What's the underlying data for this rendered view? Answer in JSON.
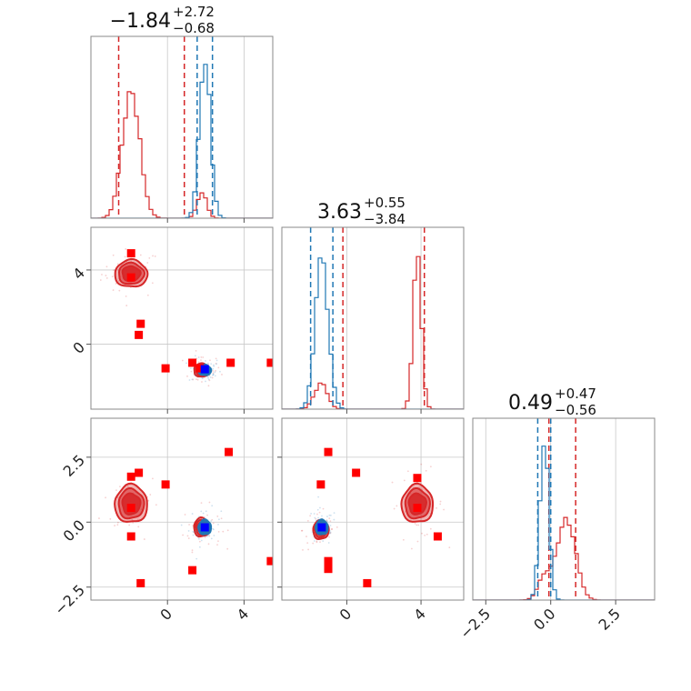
{
  "colors": {
    "red": "#d62728",
    "blue": "#1f77b4",
    "marker_red": "#ff0000",
    "marker_blue": "#0000ff",
    "grid": "#c8c8c8"
  },
  "titles": [
    {
      "main": "−1.84",
      "sup": "+2.72",
      "sub": "−0.68"
    },
    {
      "main": "3.63",
      "sup": "+0.55",
      "sub": "−3.84"
    },
    {
      "main": "0.49",
      "sup": "+0.47",
      "sub": "−0.56"
    }
  ],
  "chart_data": {
    "type": "corner",
    "parameters": 3,
    "ranges": [
      [
        -4.0,
        5.5
      ],
      [
        -3.5,
        6.3
      ],
      [
        -3.0,
        4.0
      ]
    ],
    "ticks": {
      "p0": [
        0,
        4
      ],
      "p1": [
        0,
        4
      ],
      "p2": [
        -2.5,
        0.0,
        2.5
      ],
      "p1_labels": [
        "0",
        "4"
      ],
      "p2_labels": [
        "−2.5",
        "0.0",
        "2.5"
      ],
      "p0_labels": [
        "0",
        "4"
      ]
    },
    "series": [
      {
        "color": "red",
        "hist_peaks": [
          {
            "param": 0,
            "modes": [
              {
                "center": -1.9,
                "sigma": 0.45,
                "height": 0.72
              },
              {
                "center": 1.8,
                "sigma": 0.25,
                "height": 0.14
              }
            ]
          },
          {
            "param": 1,
            "modes": [
              {
                "center": 3.8,
                "sigma": 0.22,
                "height": 0.88
              },
              {
                "center": -1.4,
                "sigma": 0.35,
                "height": 0.14
              }
            ]
          },
          {
            "param": 2,
            "modes": [
              {
                "center": 0.6,
                "sigma": 0.35,
                "height": 0.45
              },
              {
                "center": -0.25,
                "sigma": 0.25,
                "height": 0.12
              }
            ]
          }
        ],
        "quantile_lines": [
          [
            -2.55,
            0.88
          ],
          [
            -0.21,
            4.18
          ],
          [
            -0.07,
            0.96
          ]
        ],
        "clusters": [
          {
            "pair": "1-0",
            "centers": [
              [
                -1.9,
                3.8
              ],
              [
                1.8,
                -1.4
              ]
            ]
          },
          {
            "pair": "2-0",
            "centers": [
              [
                -1.9,
                0.7
              ],
              [
                1.8,
                -0.2
              ]
            ]
          },
          {
            "pair": "2-1",
            "centers": [
              [
                3.8,
                0.7
              ],
              [
                -1.4,
                -0.3
              ]
            ]
          }
        ],
        "markers": {
          "1-0": [
            [
              -1.9,
              4.9
            ],
            [
              -1.9,
              3.6
            ],
            [
              -1.4,
              1.1
            ],
            [
              -1.5,
              0.5
            ],
            [
              -0.1,
              -1.3
            ],
            [
              1.3,
              -1.0
            ],
            [
              1.7,
              -1.3
            ],
            [
              3.3,
              -1.0
            ],
            [
              5.4,
              -1.0
            ]
          ],
          "2-0": [
            [
              -1.9,
              1.75
            ],
            [
              -1.5,
              1.9
            ],
            [
              -0.1,
              1.45
            ],
            [
              3.2,
              2.7
            ],
            [
              -1.9,
              0.55
            ],
            [
              -1.9,
              -0.55
            ],
            [
              1.3,
              -1.85
            ],
            [
              -1.4,
              -2.35
            ],
            [
              5.4,
              -1.5
            ]
          ],
          "2-1": [
            [
              -1.0,
              2.7
            ],
            [
              -1.4,
              1.45
            ],
            [
              0.5,
              1.9
            ],
            [
              3.8,
              1.7
            ],
            [
              3.8,
              0.55
            ],
            [
              4.9,
              -0.55
            ],
            [
              -1.0,
              -1.5
            ],
            [
              -1.0,
              -1.8
            ],
            [
              1.1,
              -2.35
            ]
          ]
        }
      },
      {
        "color": "blue",
        "hist_peaks": [
          {
            "param": 0,
            "modes": [
              {
                "center": 1.95,
                "sigma": 0.28,
                "height": 0.9
              }
            ]
          },
          {
            "param": 1,
            "modes": [
              {
                "center": -1.35,
                "sigma": 0.35,
                "height": 0.85
              }
            ]
          },
          {
            "param": 2,
            "modes": [
              {
                "center": -0.25,
                "sigma": 0.17,
                "height": 0.9
              }
            ]
          }
        ],
        "quantile_lines": [
          [
            1.55,
            2.35
          ],
          [
            -1.95,
            -0.75
          ],
          [
            -0.5,
            0.0
          ]
        ],
        "clusters": [
          {
            "pair": "1-0",
            "centers": [
              [
                1.95,
                -1.4
              ]
            ]
          },
          {
            "pair": "2-0",
            "centers": [
              [
                1.95,
                -0.2
              ]
            ]
          },
          {
            "pair": "2-1",
            "centers": [
              [
                -1.35,
                -0.2
              ]
            ]
          }
        ],
        "markers": {
          "1-0": [
            [
              1.95,
              -1.35
            ]
          ],
          "2-0": [
            [
              1.95,
              -0.2
            ]
          ],
          "2-1": [
            [
              -1.35,
              -0.2
            ]
          ]
        }
      }
    ]
  }
}
